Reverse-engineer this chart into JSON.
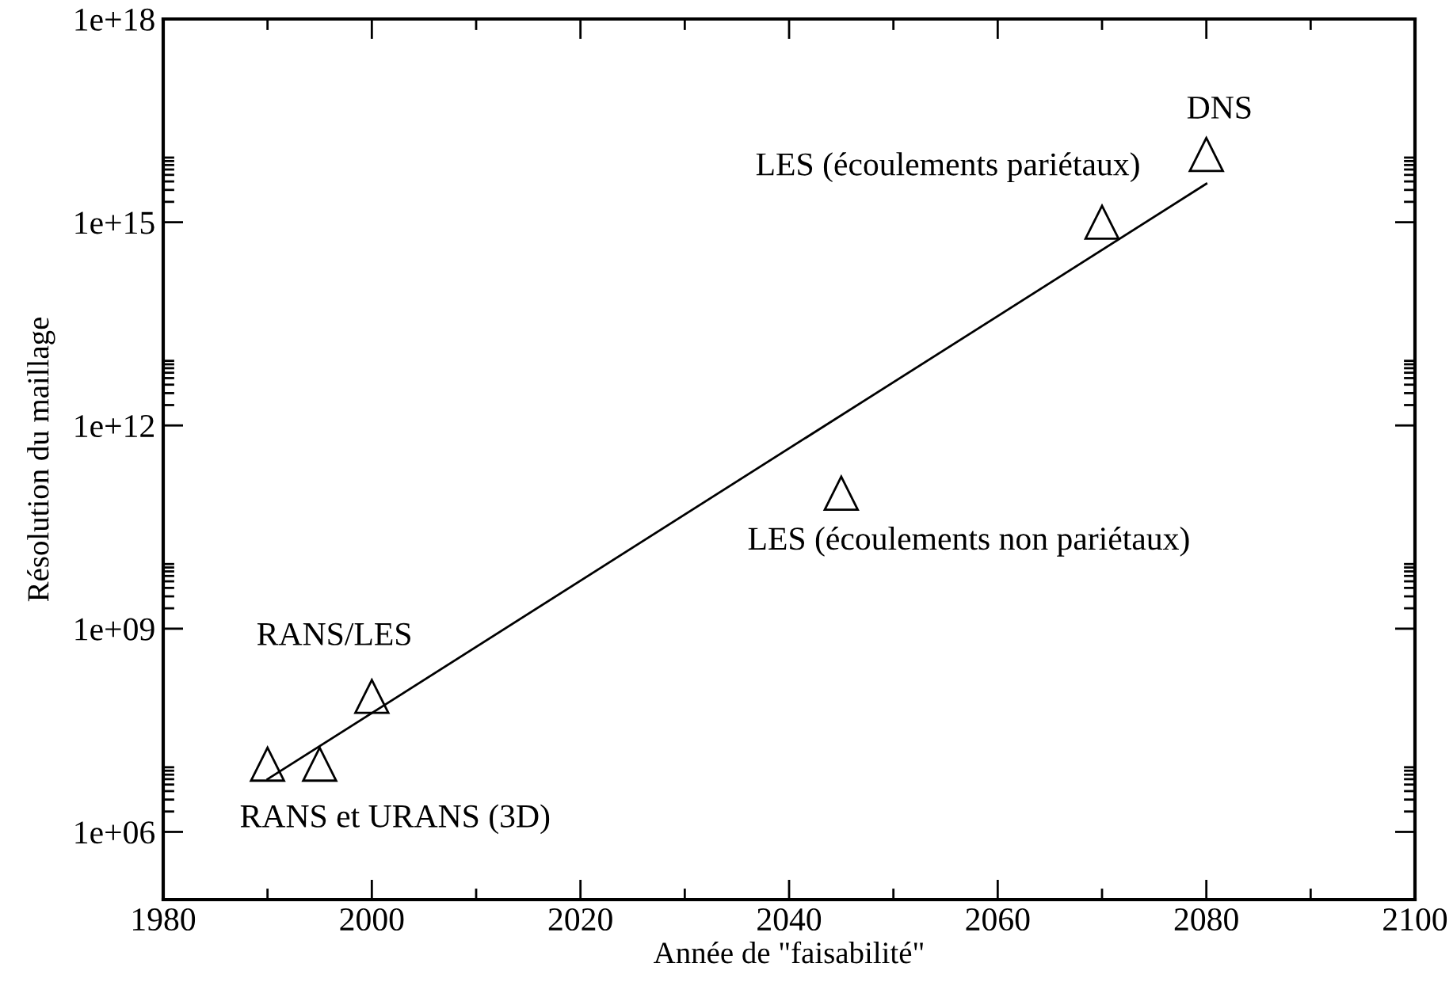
{
  "chart_data": {
    "type": "scatter",
    "xlabel": "Année de \"faisabilité\"",
    "ylabel": "Résolution du maillage",
    "log": "y",
    "grid": false,
    "marker": "triangle",
    "xlim": [
      1980,
      2100
    ],
    "xticks": [
      1980,
      {
        "value": 1990,
        "label": null
      },
      2000,
      {
        "value": 2010,
        "label": null
      },
      2020,
      {
        "value": 2030,
        "label": null
      },
      2040,
      {
        "value": 2050,
        "label": null
      },
      2060,
      {
        "value": 2070,
        "label": null
      },
      2080,
      {
        "value": 2090,
        "label": null
      },
      2100
    ],
    "ylim": [
      100000.0,
      1e+18
    ],
    "yticks": [
      {
        "value": 1000000.0,
        "label": "1e+06"
      },
      {
        "value": 2000000.0,
        "label": null
      },
      {
        "value": 3000000.0,
        "label": null
      },
      {
        "value": 4000000.0,
        "label": null
      },
      {
        "value": 5000000.0,
        "label": null
      },
      {
        "value": 6000000.0,
        "label": null
      },
      {
        "value": 7000000.0,
        "label": null
      },
      {
        "value": 8000000.0,
        "label": null
      },
      {
        "value": 9000000.0,
        "label": null
      },
      {
        "value": 1000000000.0,
        "label": "1e+09"
      },
      {
        "value": 2000000000.0,
        "label": null
      },
      {
        "value": 3000000000.0,
        "label": null
      },
      {
        "value": 4000000000.0,
        "label": null
      },
      {
        "value": 5000000000.0,
        "label": null
      },
      {
        "value": 6000000000.0,
        "label": null
      },
      {
        "value": 7000000000.0,
        "label": null
      },
      {
        "value": 8000000000.0,
        "label": null
      },
      {
        "value": 9000000000.0,
        "label": null
      },
      {
        "value": 1000000000000.0,
        "label": "1e+12"
      },
      {
        "value": 2000000000000.0,
        "label": null
      },
      {
        "value": 3000000000000.0,
        "label": null
      },
      {
        "value": 4000000000000.0,
        "label": null
      },
      {
        "value": 5000000000000.0,
        "label": null
      },
      {
        "value": 6000000000000.0,
        "label": null
      },
      {
        "value": 7000000000000.0,
        "label": null
      },
      {
        "value": 8000000000000.0,
        "label": null
      },
      {
        "value": 9000000000000.0,
        "label": null
      },
      {
        "value": 1000000000000000.0,
        "label": "1e+15"
      },
      {
        "value": 2000000000000000.0,
        "label": null
      },
      {
        "value": 3000000000000000.0,
        "label": null
      },
      {
        "value": 4000000000000000.0,
        "label": null
      },
      {
        "value": 5000000000000000.0,
        "label": null
      },
      {
        "value": 6000000000000000.0,
        "label": null
      },
      {
        "value": 7000000000000000.0,
        "label": null
      },
      {
        "value": 8000000000000000.0,
        "label": null
      },
      {
        "value": 9000000000000000.0,
        "label": null
      },
      {
        "value": 1e+18,
        "label": "1e+18"
      }
    ],
    "series": [
      {
        "color": "#000000",
        "x": [
          1990,
          1995,
          2000,
          2045,
          2070,
          2080
        ],
        "values": [
          10000000.0,
          10000000.0,
          100000000.0,
          100000000000.0,
          1000000000000000.0,
          1e+16
        ]
      },
      {
        "type": "line",
        "color": "#000000",
        "marker": "none",
        "line_style": "solid",
        "x": [
          1990,
          2080
        ],
        "values": [
          6000000.0,
          3700000000000000.0
        ]
      }
    ],
    "annotations": [
      {
        "text": "RANS et URANS (3D)",
        "x": 1990,
        "y": 10000000.0
      },
      {
        "text": "RANS/LES",
        "x": 2000,
        "y": 100000000.0
      },
      {
        "text": "LES (écoulements non pariétaux)",
        "x": 2045,
        "y": 100000000000.0
      },
      {
        "text": "LES (écoulements pariétaux)",
        "x": 2070,
        "y": 1000000000000000.0
      },
      {
        "text": "DNS",
        "x": 2080,
        "y": 1e+16
      }
    ]
  }
}
